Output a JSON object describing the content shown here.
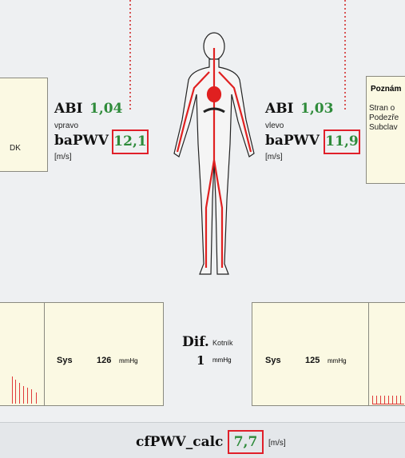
{
  "left_box": {
    "text": "DK"
  },
  "right_side": {
    "abi_label": "ABI",
    "abi_value": "1,04",
    "side": "vpravo",
    "pwv_label": "baPWV",
    "pwv_value": "12,1",
    "unit": "[m/s]"
  },
  "left_side": {
    "abi_label": "ABI",
    "abi_value": "1,03",
    "side": "vlevo",
    "pwv_label": "baPWV",
    "pwv_value": "11,9",
    "unit": "[m/s]"
  },
  "note": {
    "title": "Poznám",
    "lines": [
      "Stran o",
      "Podezře",
      "Subclav"
    ]
  },
  "right_panel": {
    "sys_label": "Sys",
    "sys_value": "126",
    "sys_unit": "mmHg"
  },
  "left_panel": {
    "sys_label": "Sys",
    "sys_value": "125",
    "sys_unit": "mmHg"
  },
  "difference": {
    "label": "Dif.",
    "site": "Kotník",
    "value": "1",
    "unit": "mmHg"
  },
  "cfpwv": {
    "label": "cfPWV_calc",
    "value": "7,7",
    "unit": "[m/s]"
  }
}
